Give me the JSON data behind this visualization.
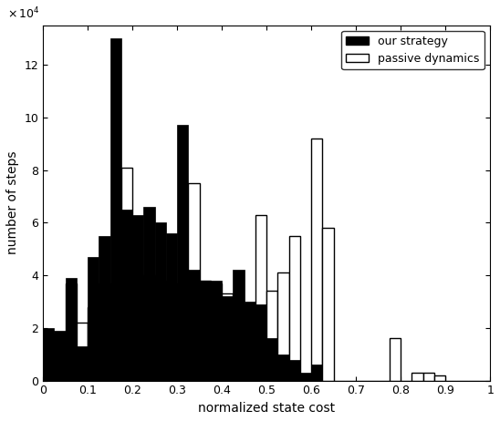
{
  "title": "",
  "xlabel": "normalized state cost",
  "ylabel": "number of steps",
  "xlim": [
    0,
    1
  ],
  "ylim": [
    0,
    135000
  ],
  "ytick_scale": 10000,
  "yticks": [
    0,
    20000,
    40000,
    60000,
    80000,
    100000,
    120000
  ],
  "xticks": [
    0,
    0.1,
    0.2,
    0.3,
    0.4,
    0.5,
    0.6,
    0.7,
    0.8,
    0.9,
    1.0
  ],
  "bin_edges": [
    0.0,
    0.025,
    0.05,
    0.075,
    0.1,
    0.125,
    0.15,
    0.175,
    0.2,
    0.225,
    0.25,
    0.275,
    0.3,
    0.325,
    0.35,
    0.375,
    0.4,
    0.425,
    0.45,
    0.475,
    0.5,
    0.525,
    0.55,
    0.575,
    0.6,
    0.625,
    0.65,
    0.675,
    0.7,
    0.725,
    0.75,
    0.775,
    0.8,
    0.825,
    0.85,
    0.875,
    0.9,
    0.925,
    0.95,
    0.975,
    1.0
  ],
  "our_strategy": [
    20000,
    19000,
    39000,
    13000,
    47000,
    55000,
    130000,
    65000,
    63000,
    66000,
    60000,
    56000,
    97000,
    42000,
    38000,
    38000,
    32000,
    42000,
    30000,
    29000,
    16000,
    10000,
    8000,
    3000,
    6000,
    0,
    0,
    0,
    0,
    0,
    0,
    0,
    0,
    0,
    0,
    0,
    0,
    0,
    0,
    0
  ],
  "passive_dynamics": [
    0,
    18000,
    37000,
    22000,
    28000,
    37000,
    0,
    81000,
    39000,
    40000,
    38000,
    37000,
    0,
    75000,
    38000,
    37000,
    33000,
    25000,
    29000,
    63000,
    34000,
    41000,
    55000,
    0,
    92000,
    58000,
    0,
    0,
    0,
    0,
    0,
    16000,
    0,
    3000,
    3000,
    2000,
    0,
    0,
    0,
    0
  ],
  "strategy_color": "#000000",
  "passive_color": "#ffffff",
  "passive_edge": "#000000",
  "legend_loc": "upper right",
  "figsize": [
    5.48,
    4.62
  ],
  "dpi": 100
}
